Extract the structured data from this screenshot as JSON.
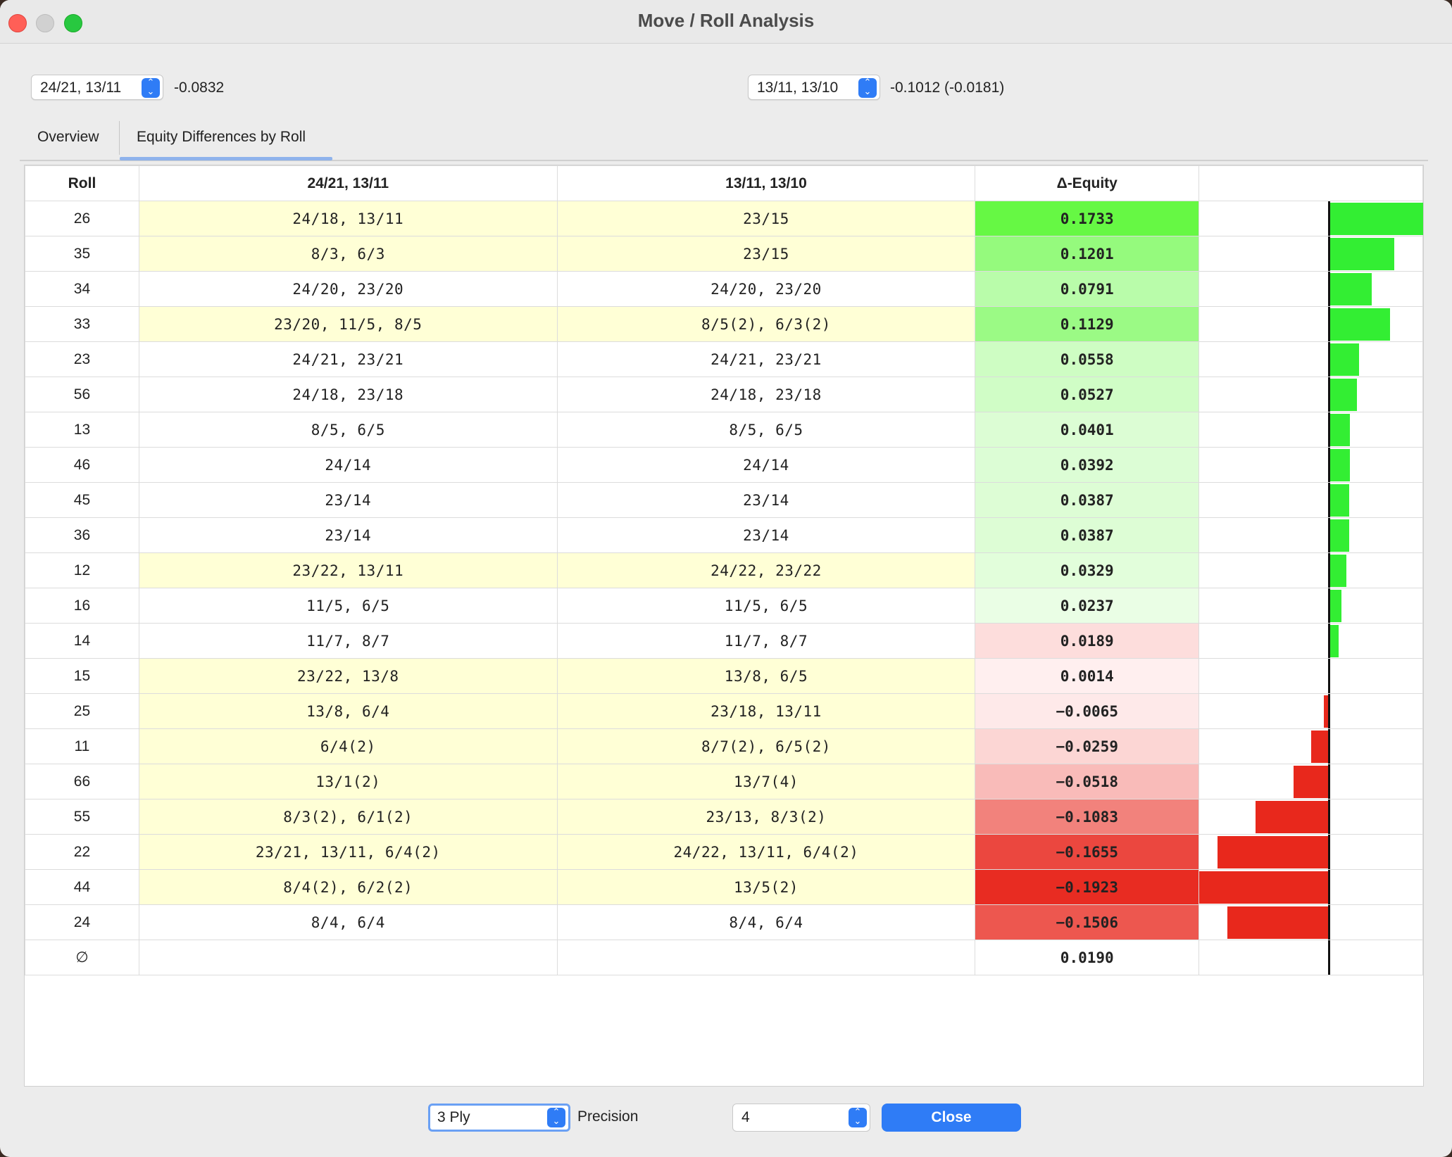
{
  "window": {
    "title": "Move / Roll Analysis"
  },
  "move_a": {
    "value": "24/21, 13/11",
    "equity": "-0.0832"
  },
  "move_b": {
    "value": "13/11, 13/10",
    "equity": "-0.1012 (-0.0181)"
  },
  "tabs": [
    {
      "label": "Overview",
      "selected": false
    },
    {
      "label": "Equity Differences by Roll",
      "selected": true
    }
  ],
  "table": {
    "headers": {
      "roll": "Roll",
      "col_a": "24/21, 13/11",
      "col_b": "13/11, 13/10",
      "delta": "Δ-Equity"
    },
    "rows": [
      {
        "roll": "26",
        "a": "24/18, 13/11",
        "b": "23/15",
        "delta": "0.1733",
        "value": 0.1733,
        "differs": true
      },
      {
        "roll": "35",
        "a": "8/3, 6/3",
        "b": "23/15",
        "delta": "0.1201",
        "value": 0.1201,
        "differs": true
      },
      {
        "roll": "34",
        "a": "24/20, 23/20",
        "b": "24/20, 23/20",
        "delta": "0.0791",
        "value": 0.0791,
        "differs": false
      },
      {
        "roll": "33",
        "a": "23/20, 11/5, 8/5",
        "b": "8/5(2), 6/3(2)",
        "delta": "0.1129",
        "value": 0.1129,
        "differs": true
      },
      {
        "roll": "23",
        "a": "24/21, 23/21",
        "b": "24/21, 23/21",
        "delta": "0.0558",
        "value": 0.0558,
        "differs": false
      },
      {
        "roll": "56",
        "a": "24/18, 23/18",
        "b": "24/18, 23/18",
        "delta": "0.0527",
        "value": 0.0527,
        "differs": false
      },
      {
        "roll": "13",
        "a": "8/5, 6/5",
        "b": "8/5, 6/5",
        "delta": "0.0401",
        "value": 0.0401,
        "differs": false
      },
      {
        "roll": "46",
        "a": "24/14",
        "b": "24/14",
        "delta": "0.0392",
        "value": 0.0392,
        "differs": false
      },
      {
        "roll": "45",
        "a": "23/14",
        "b": "23/14",
        "delta": "0.0387",
        "value": 0.0387,
        "differs": false
      },
      {
        "roll": "36",
        "a": "23/14",
        "b": "23/14",
        "delta": "0.0387",
        "value": 0.0387,
        "differs": false
      },
      {
        "roll": "12",
        "a": "23/22, 13/11",
        "b": "24/22, 23/22",
        "delta": "0.0329",
        "value": 0.0329,
        "differs": true
      },
      {
        "roll": "16",
        "a": "11/5, 6/5",
        "b": "11/5, 6/5",
        "delta": "0.0237",
        "value": 0.0237,
        "differs": false
      },
      {
        "roll": "14",
        "a": "11/7, 8/7",
        "b": "11/7, 8/7",
        "delta": "0.0189",
        "value": 0.0189,
        "differs": false
      },
      {
        "roll": "15",
        "a": "23/22, 13/8",
        "b": "13/8, 6/5",
        "delta": "0.0014",
        "value": 0.0014,
        "differs": true
      },
      {
        "roll": "25",
        "a": "13/8, 6/4",
        "b": "23/18, 13/11",
        "delta": "−0.0065",
        "value": -0.0065,
        "differs": true
      },
      {
        "roll": "11",
        "a": "6/4(2)",
        "b": "8/7(2), 6/5(2)",
        "delta": "−0.0259",
        "value": -0.0259,
        "differs": true
      },
      {
        "roll": "66",
        "a": "13/1(2)",
        "b": "13/7(4)",
        "delta": "−0.0518",
        "value": -0.0518,
        "differs": true
      },
      {
        "roll": "55",
        "a": "8/3(2), 6/1(2)",
        "b": "23/13, 8/3(2)",
        "delta": "−0.1083",
        "value": -0.1083,
        "differs": true
      },
      {
        "roll": "22",
        "a": "23/21, 13/11, 6/4(2)",
        "b": "24/22, 13/11, 6/4(2)",
        "delta": "−0.1655",
        "value": -0.1655,
        "differs": true
      },
      {
        "roll": "44",
        "a": "8/4(2), 6/2(2)",
        "b": "13/5(2)",
        "delta": "−0.1923",
        "value": -0.1923,
        "differs": true
      },
      {
        "roll": "24",
        "a": "8/4, 6/4",
        "b": "8/4, 6/4",
        "delta": "−0.1506",
        "value": -0.1506,
        "differs": false
      }
    ],
    "summary": {
      "roll": "∅",
      "delta": "0.0190"
    }
  },
  "colors": {
    "differs_row": "#ffffd6",
    "positive": "#33ee33",
    "negative": "#e8281c",
    "accent": "#2f7cf6"
  },
  "footer": {
    "ply_value": "3 Ply",
    "precision_label": "Precision",
    "precision_value": "4",
    "close_label": "Close"
  }
}
